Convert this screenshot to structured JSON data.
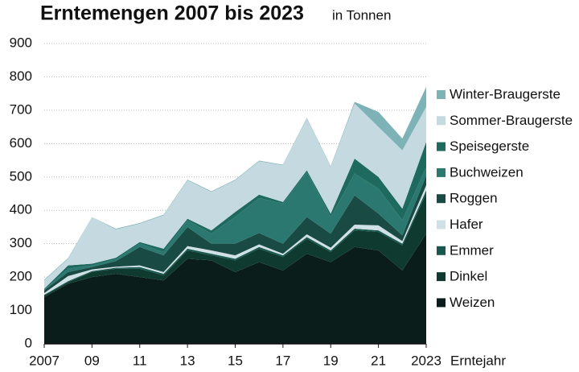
{
  "chart_data": {
    "type": "stacked_area",
    "title": "Erntemengen 2007 bis 2023",
    "subtitle": "in Tonnen",
    "x_label": "Erntejahr",
    "x": [
      2007,
      2008,
      2009,
      2010,
      2011,
      2012,
      2013,
      2014,
      2015,
      2016,
      2017,
      2018,
      2019,
      2020,
      2021,
      2022,
      2023
    ],
    "xlim": [
      2007,
      2023
    ],
    "xticks": [
      2007,
      {
        "value": 2009,
        "label": "09"
      },
      {
        "value": 2011,
        "label": "11"
      },
      {
        "value": 2013,
        "label": "13"
      },
      {
        "value": 2015,
        "label": "15"
      },
      {
        "value": 2017,
        "label": "17"
      },
      {
        "value": 2019,
        "label": "19"
      },
      {
        "value": 2021,
        "label": "21"
      },
      2023
    ],
    "ylim": [
      0,
      900
    ],
    "yticks": [
      0,
      100,
      200,
      300,
      400,
      500,
      600,
      700,
      800,
      900
    ],
    "grid": true,
    "series": [
      {
        "name": "Weizen",
        "color": "#0a1d1a",
        "values": [
          140,
          180,
          200,
          210,
          200,
          190,
          255,
          250,
          215,
          245,
          220,
          270,
          245,
          290,
          280,
          220,
          330
        ]
      },
      {
        "name": "Dinkel",
        "color": "#0f3a30",
        "values": [
          5,
          5,
          15,
          15,
          25,
          15,
          25,
          15,
          35,
          40,
          40,
          45,
          30,
          50,
          55,
          75,
          120
        ]
      },
      {
        "name": "Emmer",
        "color": "#17574d",
        "values": [
          2,
          3,
          3,
          3,
          5,
          5,
          5,
          5,
          5,
          5,
          5,
          5,
          5,
          5,
          5,
          5,
          10
        ]
      },
      {
        "name": "Hafer",
        "color": "#cfe0e6",
        "values": [
          5,
          15,
          5,
          3,
          5,
          5,
          8,
          10,
          10,
          8,
          5,
          8,
          8,
          12,
          15,
          8,
          15
        ]
      },
      {
        "name": "Roggen",
        "color": "#1a4a44",
        "values": [
          8,
          12,
          7,
          17,
          55,
          50,
          57,
          20,
          35,
          34,
          30,
          52,
          42,
          88,
          35,
          17,
          30
        ]
      },
      {
        "name": "Buchweizen",
        "color": "#2a7870",
        "values": [
          2,
          10,
          5,
          5,
          10,
          10,
          20,
          30,
          80,
          105,
          120,
          135,
          50,
          65,
          75,
          45,
          25
        ]
      },
      {
        "name": "Speisegerste",
        "color": "#1e6a5f",
        "values": [
          3,
          10,
          5,
          5,
          5,
          10,
          5,
          10,
          15,
          10,
          5,
          5,
          10,
          45,
          35,
          35,
          75
        ]
      },
      {
        "name": "Sommer-Braugerste",
        "color": "#c5d9e0",
        "values": [
          25,
          20,
          140,
          85,
          55,
          100,
          115,
          115,
          95,
          100,
          110,
          155,
          140,
          165,
          150,
          175,
          105
        ]
      },
      {
        "name": "Winter-Braugerste",
        "color": "#7db2b7",
        "values": [
          2,
          2,
          0,
          2,
          2,
          2,
          2,
          2,
          2,
          2,
          2,
          2,
          2,
          5,
          45,
          35,
          60
        ]
      }
    ]
  }
}
